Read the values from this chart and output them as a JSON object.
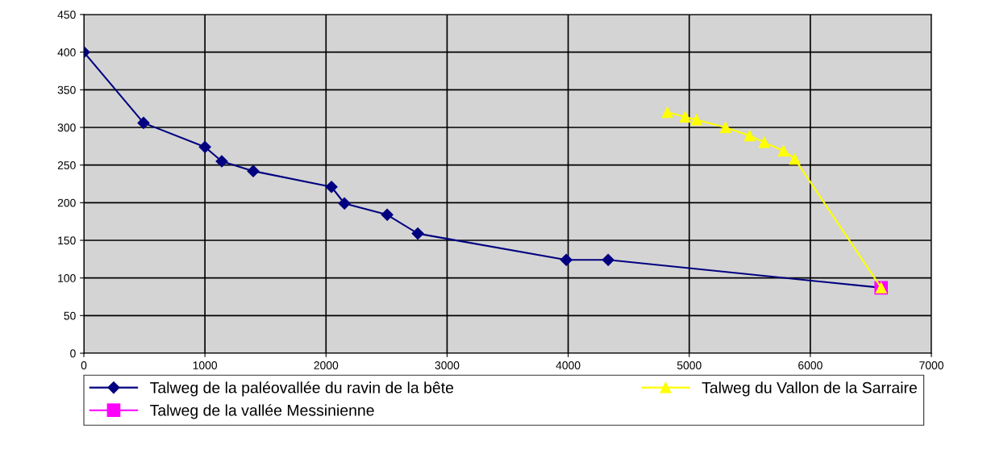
{
  "chart_data": {
    "type": "line",
    "xlim": [
      0,
      7000
    ],
    "xticks": [
      0,
      1000,
      2000,
      3000,
      4000,
      5000,
      6000,
      7000
    ],
    "ylim": [
      0,
      450
    ],
    "yticks": [
      0,
      50,
      100,
      150,
      200,
      250,
      300,
      350,
      400,
      450
    ],
    "grid": true,
    "legend": "bottom",
    "series": [
      {
        "name": "Talweg de la paléovallée du ravin de la bête",
        "color": "#000080",
        "marker": "diamond",
        "x": [
          0,
          493,
          1000,
          1139,
          1399,
          2045,
          2152,
          2505,
          2758,
          3984,
          4330,
          6585
        ],
        "values": [
          400,
          306,
          274,
          255,
          242,
          221,
          199,
          184,
          159,
          124,
          124,
          87
        ]
      },
      {
        "name": "Talweg de la vallée Messinienne",
        "color": "#ff00ff",
        "marker": "square",
        "x": [
          6585
        ],
        "values": [
          87
        ]
      },
      {
        "name": "Talweg du Vallon de la Sarraire",
        "color": "#ffff00",
        "marker": "triangle",
        "x": [
          4820,
          4967,
          5060,
          5300,
          5499,
          5619,
          5779,
          5872,
          6585
        ],
        "values": [
          320,
          314,
          310,
          300,
          289,
          280,
          269,
          258,
          87
        ]
      }
    ]
  }
}
